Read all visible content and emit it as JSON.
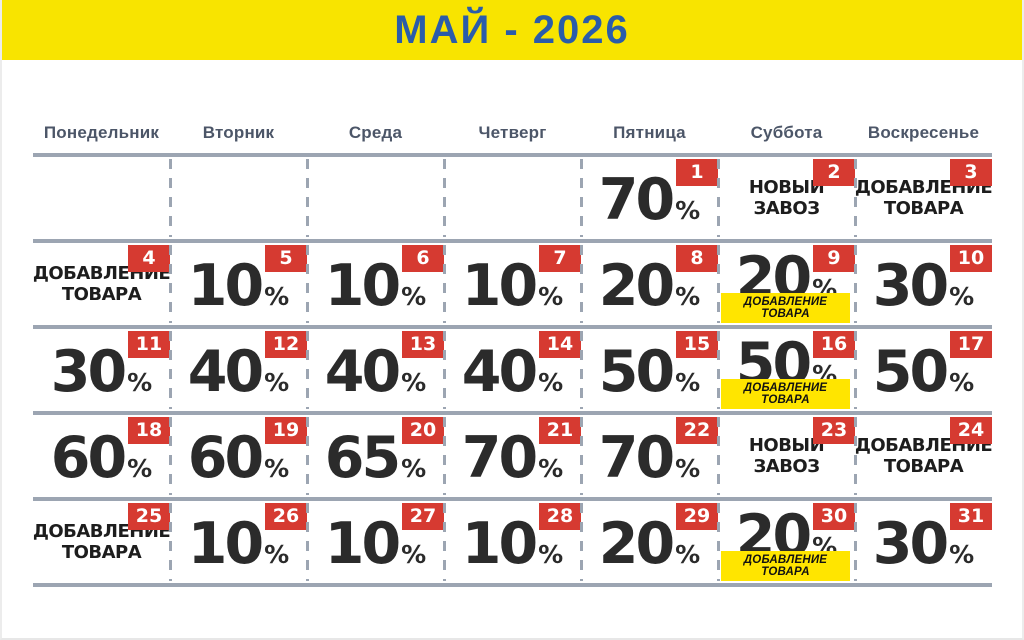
{
  "header": {
    "title": "МАЙ - 2026"
  },
  "weekdays": [
    "Понедельник",
    "Вторник",
    "Среда",
    "Четверг",
    "Пятница",
    "Суббота",
    "Воскресенье"
  ],
  "labels": {
    "percent_sign": "%"
  },
  "colors": {
    "header_bg": "#F8E400",
    "title_blue": "#2A5CAA",
    "weekday_slate": "#4C5668",
    "badge_red": "#D63A31",
    "badge_text": "#FFFFFF",
    "highlight_yellow": "#FFE500",
    "grid_gray": "#9CA5B2",
    "text_black": "#2B2B2B"
  },
  "calendar": {
    "weeks": [
      [
        null,
        null,
        null,
        null,
        {
          "day": "1",
          "type": "percent",
          "value": "70"
        },
        {
          "day": "2",
          "type": "text",
          "lines": [
            "НОВЫЙ",
            "ЗАВОЗ"
          ]
        },
        {
          "day": "3",
          "type": "text",
          "lines": [
            "ДОБАВЛЕНИЕ",
            "ТОВАРА"
          ]
        }
      ],
      [
        {
          "day": "4",
          "type": "text",
          "lines": [
            "ДОБАВЛЕНИЕ",
            "ТОВАРА"
          ]
        },
        {
          "day": "5",
          "type": "percent",
          "value": "10"
        },
        {
          "day": "6",
          "type": "percent",
          "value": "10"
        },
        {
          "day": "7",
          "type": "percent",
          "value": "10"
        },
        {
          "day": "8",
          "type": "percent",
          "value": "20"
        },
        {
          "day": "9",
          "type": "percent",
          "value": "20",
          "highlight": "ДОБАВЛЕНИЕ ТОВАРА"
        },
        {
          "day": "10",
          "type": "percent",
          "value": "30"
        }
      ],
      [
        {
          "day": "11",
          "type": "percent",
          "value": "30"
        },
        {
          "day": "12",
          "type": "percent",
          "value": "40"
        },
        {
          "day": "13",
          "type": "percent",
          "value": "40"
        },
        {
          "day": "14",
          "type": "percent",
          "value": "40"
        },
        {
          "day": "15",
          "type": "percent",
          "value": "50"
        },
        {
          "day": "16",
          "type": "percent",
          "value": "50",
          "highlight": "ДОБАВЛЕНИЕ ТОВАРА"
        },
        {
          "day": "17",
          "type": "percent",
          "value": "50"
        }
      ],
      [
        {
          "day": "18",
          "type": "percent",
          "value": "60"
        },
        {
          "day": "19",
          "type": "percent",
          "value": "60"
        },
        {
          "day": "20",
          "type": "percent",
          "value": "65"
        },
        {
          "day": "21",
          "type": "percent",
          "value": "70"
        },
        {
          "day": "22",
          "type": "percent",
          "value": "70"
        },
        {
          "day": "23",
          "type": "text",
          "lines": [
            "НОВЫЙ",
            "ЗАВОЗ"
          ]
        },
        {
          "day": "24",
          "type": "text",
          "lines": [
            "ДОБАВЛЕНИЕ",
            "ТОВАРА"
          ]
        }
      ],
      [
        {
          "day": "25",
          "type": "text",
          "lines": [
            "ДОБАВЛЕНИЕ",
            "ТОВАРА"
          ]
        },
        {
          "day": "26",
          "type": "percent",
          "value": "10"
        },
        {
          "day": "27",
          "type": "percent",
          "value": "10"
        },
        {
          "day": "28",
          "type": "percent",
          "value": "10"
        },
        {
          "day": "29",
          "type": "percent",
          "value": "20"
        },
        {
          "day": "30",
          "type": "percent",
          "value": "20",
          "highlight": "ДОБАВЛЕНИЕ ТОВАРА"
        },
        {
          "day": "31",
          "type": "percent",
          "value": "30"
        }
      ]
    ]
  }
}
